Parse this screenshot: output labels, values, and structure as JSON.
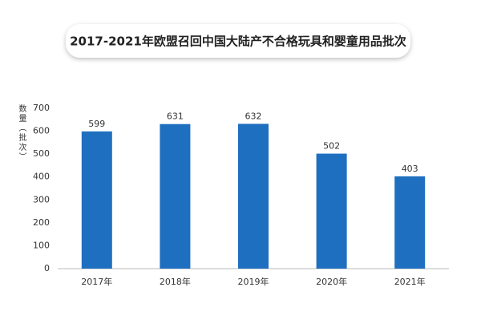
{
  "chart_data": {
    "type": "bar",
    "title": "2017-2021年欧盟召回中国大陆产不合格玩具和婴童用品批次",
    "y_label": "数量（批次）",
    "categories": [
      "2017年",
      "2018年",
      "2019年",
      "2020年",
      "2021年"
    ],
    "values": [
      599,
      631,
      632,
      502,
      403
    ],
    "color": "#1f6fc0",
    "ylim": [
      0,
      700
    ],
    "yticks": [
      0,
      100,
      200,
      300,
      400,
      500,
      600,
      700
    ],
    "grid": false
  }
}
